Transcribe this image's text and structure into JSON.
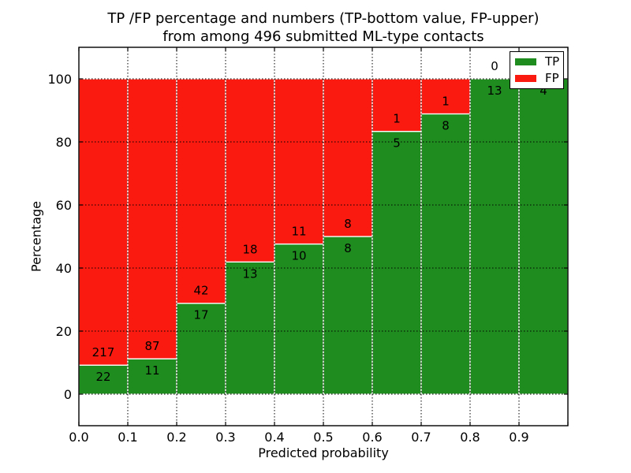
{
  "chart_data": {
    "type": "bar",
    "stacked": true,
    "title_line1": "TP /FP percentage and numbers (TP-bottom value, FP-upper)",
    "title_line2": "from among 496 submitted ML-type contacts",
    "xlabel": "Predicted probability",
    "ylabel": "Percentage",
    "total_contacts": 496,
    "xlim": [
      0.0,
      1.0
    ],
    "ylim": [
      -10,
      110
    ],
    "grid": true,
    "bin_width": 0.1,
    "bin_starts": [
      0.0,
      0.1,
      0.2,
      0.3,
      0.4,
      0.5,
      0.6,
      0.7,
      0.8,
      0.9
    ],
    "xtick_labels": [
      "0.0",
      "0.1",
      "0.2",
      "0.3",
      "0.4",
      "0.5",
      "0.6",
      "0.7",
      "0.8",
      "0.9"
    ],
    "ytick_values": [
      0,
      20,
      40,
      60,
      80,
      100
    ],
    "series": [
      {
        "name": "TP",
        "color": "#1f8c1f",
        "counts": [
          22,
          11,
          17,
          13,
          10,
          8,
          5,
          8,
          13,
          4
        ],
        "percent": [
          9.2,
          11.2,
          28.8,
          41.9,
          47.6,
          50.0,
          83.3,
          88.9,
          100.0,
          100.0
        ]
      },
      {
        "name": "FP",
        "color": "#fa1a10",
        "counts": [
          217,
          87,
          42,
          18,
          11,
          8,
          1,
          1,
          0,
          0
        ],
        "percent": [
          90.8,
          88.8,
          71.2,
          58.1,
          52.4,
          50.0,
          16.7,
          11.1,
          0.0,
          0.0
        ]
      }
    ],
    "legend": {
      "position": "upper right",
      "items": [
        {
          "label": "TP",
          "color": "#1f8c1f"
        },
        {
          "label": "FP",
          "color": "#fa1a10"
        }
      ]
    }
  }
}
